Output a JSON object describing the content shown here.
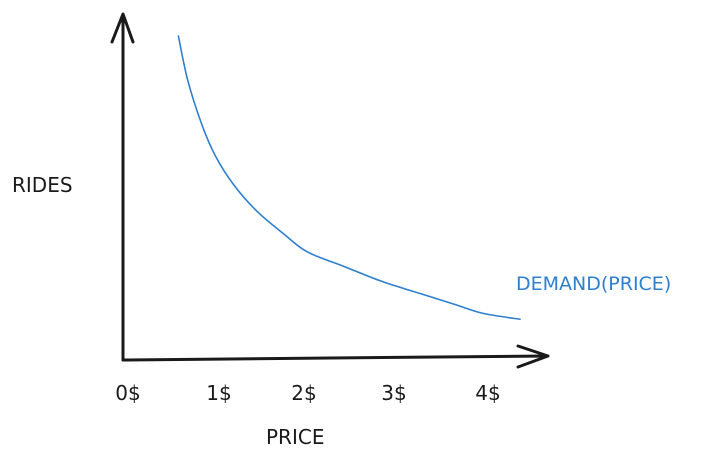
{
  "chart_data": {
    "type": "line",
    "xlabel": "PRICE",
    "ylabel": "RIDES",
    "categories": [
      "0$",
      "1$",
      "2$",
      "3$",
      "4$"
    ],
    "xlim": [
      0,
      4.3
    ],
    "series": [
      {
        "name": "DEMAND(PRICE)",
        "x": [
          0.6,
          0.7,
          0.85,
          1.0,
          1.2,
          1.45,
          1.75,
          2.0,
          2.4,
          2.8,
          3.2,
          3.6,
          3.9,
          4.3
        ],
        "y": [
          100,
          85,
          70,
          59,
          49,
          40,
          32,
          26,
          21,
          16,
          12,
          8,
          5,
          3
        ],
        "color": "#2f7fd0"
      }
    ],
    "ylim": [
      0,
      100
    ],
    "grid": false,
    "legend": "none"
  }
}
